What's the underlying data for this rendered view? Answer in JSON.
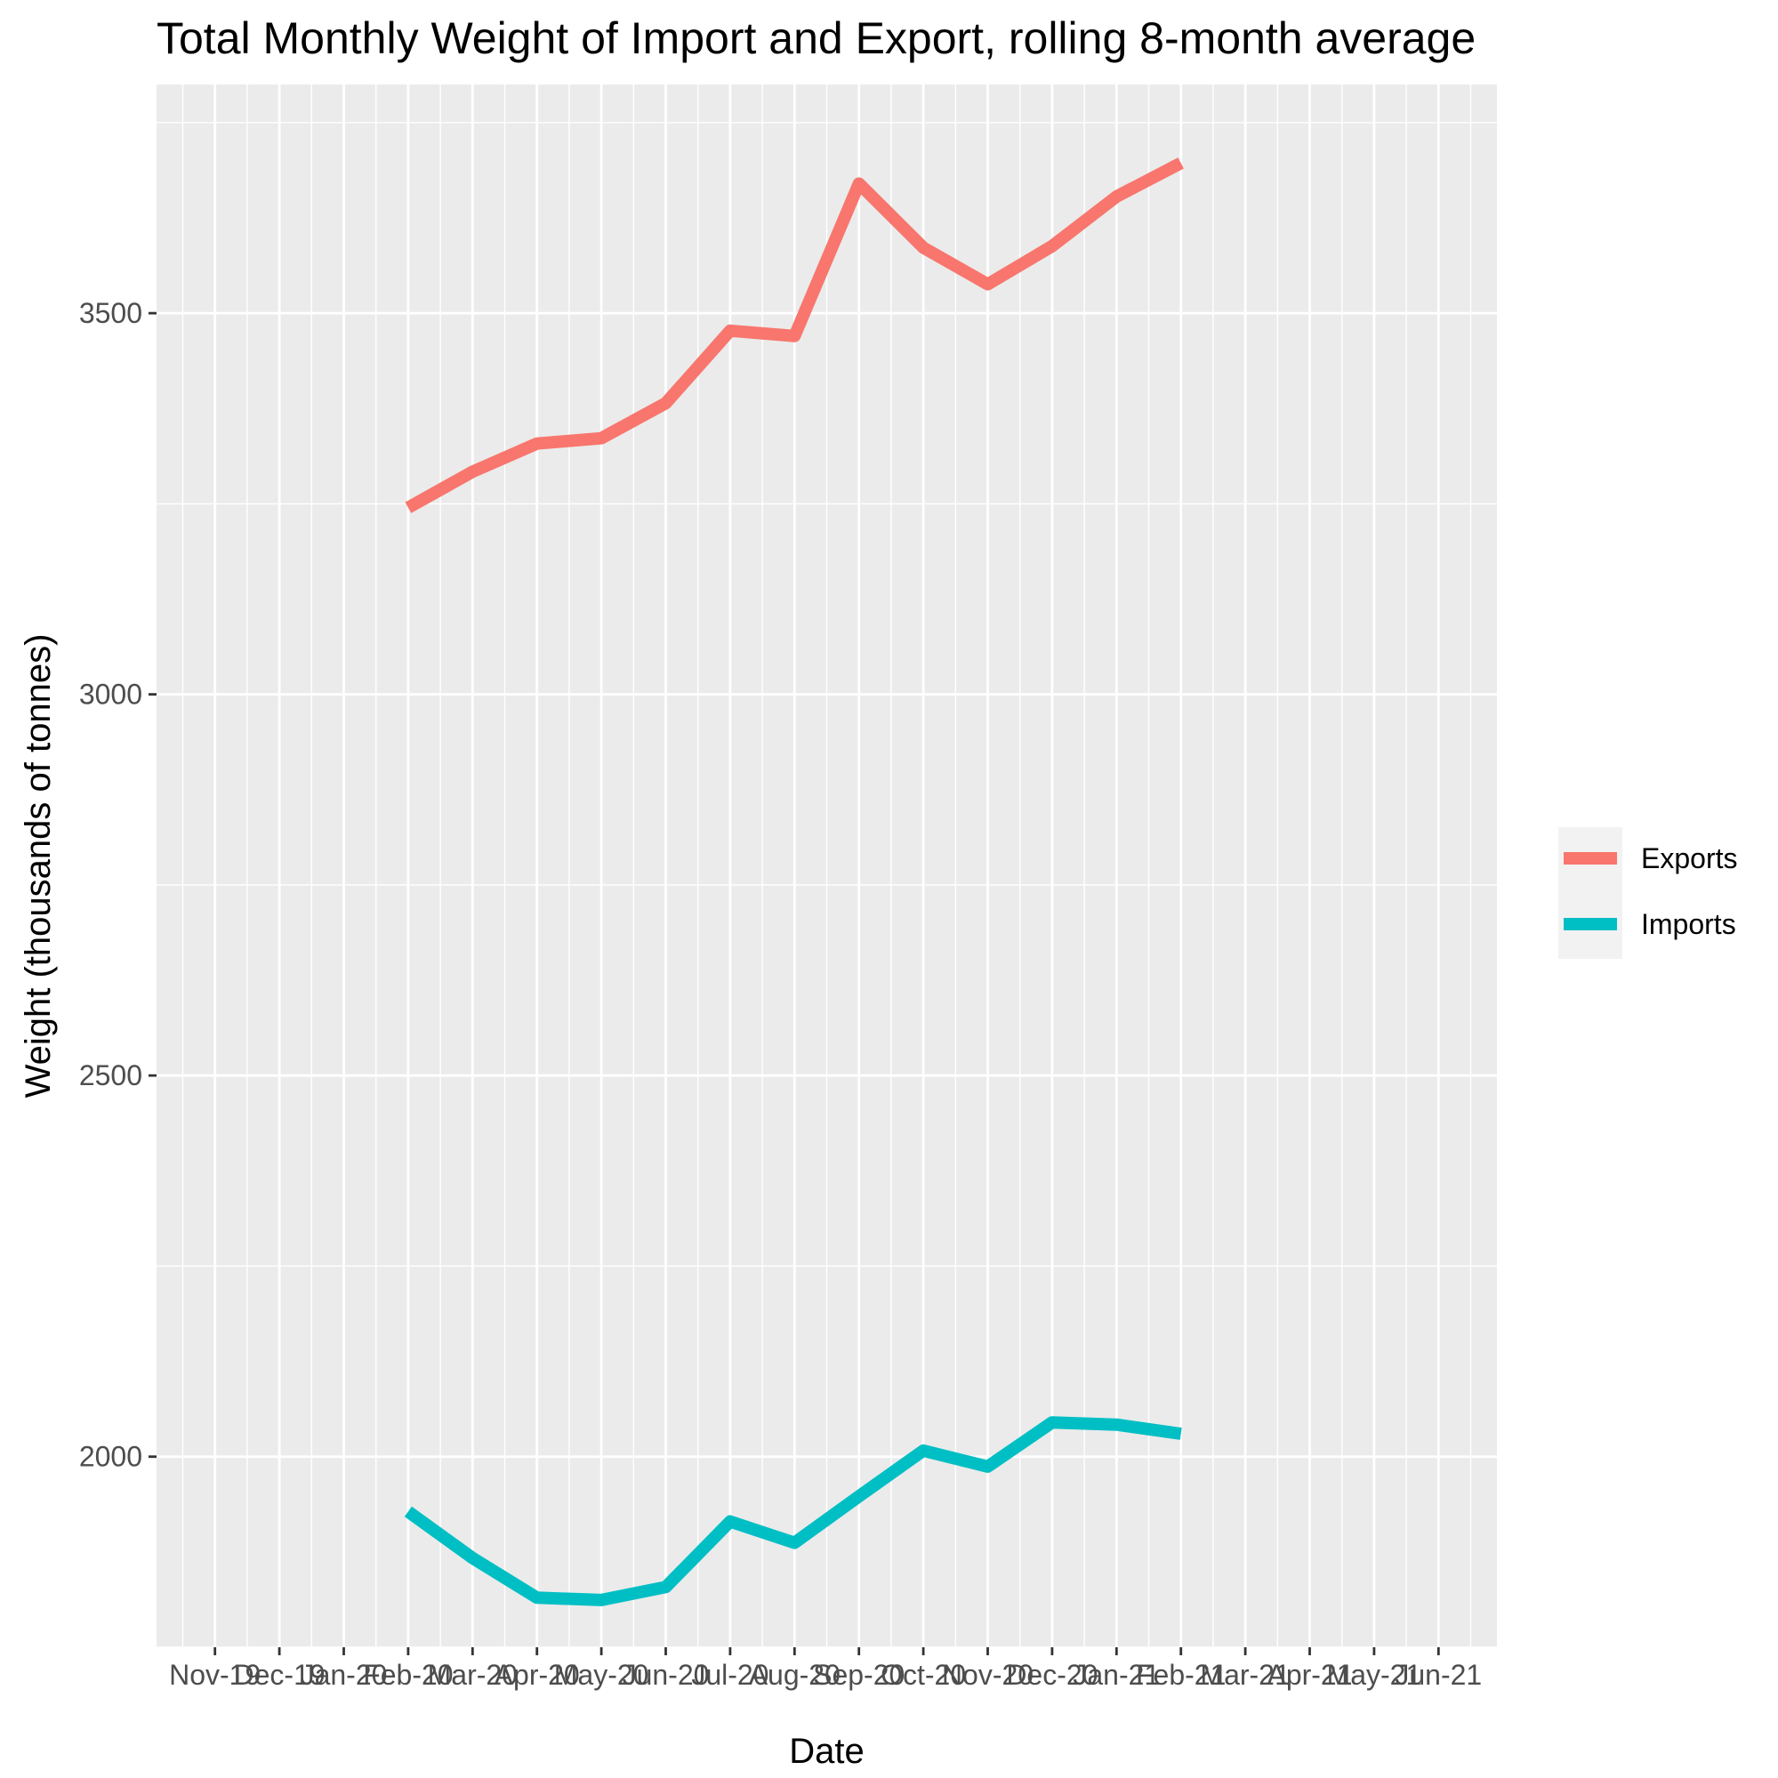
{
  "chart_data": {
    "type": "line",
    "title": "Total Monthly Weight of Import and Export, rolling 8-month average",
    "xlabel": "Date",
    "ylabel": "Weight (thousands of tonnes)",
    "categories": [
      "Nov-19",
      "Dec-19",
      "Jan-20",
      "Feb-20",
      "Mar-20",
      "Apr-20",
      "May-20",
      "Jun-20",
      "Jul-20",
      "Aug-20",
      "Sep-20",
      "Oct-20",
      "Nov-20",
      "Dec-20",
      "Jan-21",
      "Feb-21",
      "Mar-21",
      "Apr-21",
      "May-21",
      "Jun-21"
    ],
    "x_tick_labels": [
      "Nov-19",
      "Dec-19",
      "Jan-20",
      "Feb-20",
      "Mar-20",
      "Apr-20",
      "May-20",
      "Jun-20",
      "Jul-20",
      "Aug-20",
      "Sep-20",
      "Oct-20",
      "Nov-20",
      "Dec-20",
      "Jan-21",
      "Feb-21",
      "Mar-21",
      "Apr-21",
      "May-21",
      "Jun-21"
    ],
    "ylim": [
      1750,
      3800
    ],
    "y_ticks": [
      2000,
      2500,
      3000,
      3500
    ],
    "y_minor_ticks": [
      1750,
      2250,
      2750,
      3250,
      3750
    ],
    "grid": true,
    "legend_position": "right",
    "series": [
      {
        "name": "Exports",
        "color": "#F8766D",
        "x": [
          "Feb-20",
          "Mar-20",
          "Apr-20",
          "May-20",
          "Jun-20",
          "Jul-20",
          "Aug-20",
          "Sep-20",
          "Oct-20",
          "Nov-20",
          "Dec-20",
          "Jan-21",
          "Feb-21"
        ],
        "values": [
          3245,
          3292,
          3329,
          3336,
          3382,
          3477,
          3470,
          3670,
          3586,
          3538,
          3588,
          3653,
          3697
        ]
      },
      {
        "name": "Imports",
        "color": "#00BFC4",
        "x": [
          "Feb-20",
          "Mar-20",
          "Apr-20",
          "May-20",
          "Jun-20",
          "Jul-20",
          "Aug-20",
          "Sep-20",
          "Oct-20",
          "Nov-20",
          "Dec-20",
          "Jan-21",
          "Feb-21"
        ],
        "values": [
          1928,
          1867,
          1815,
          1812,
          1829,
          1915,
          1887,
          1948,
          2008,
          1987,
          2045,
          2042,
          2030
        ]
      }
    ]
  }
}
